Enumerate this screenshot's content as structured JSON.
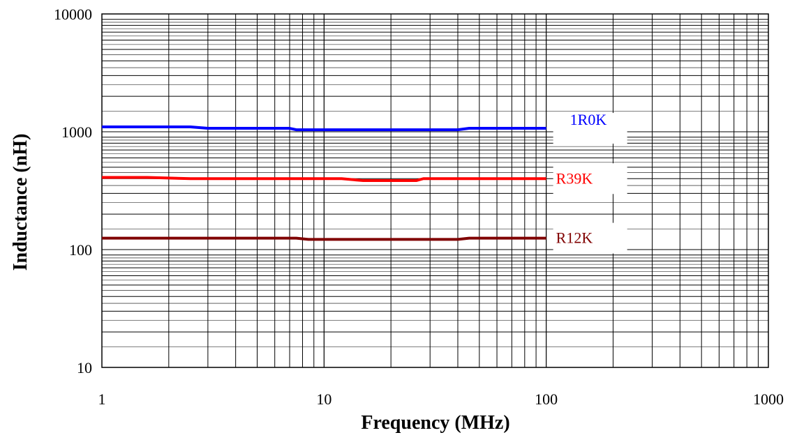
{
  "chart_data": {
    "type": "line",
    "title": "",
    "xlabel": "Frequency (MHz)",
    "ylabel": "Inductance (nH)",
    "xscale": "log",
    "yscale": "log",
    "xlim": [
      1,
      1000
    ],
    "ylim": [
      10,
      10000
    ],
    "xticks": [
      "1",
      "10",
      "100",
      "1000"
    ],
    "yticks": [
      "10",
      "100",
      "1000",
      "10000"
    ],
    "grid": true,
    "series": [
      {
        "name": "1R0K",
        "color": "#0000ff",
        "x": [
          1,
          2.5,
          3,
          7,
          7.5,
          40,
          45,
          100
        ],
        "y": [
          1100,
          1100,
          1070,
          1070,
          1040,
          1040,
          1070,
          1070
        ]
      },
      {
        "name": "R39K",
        "color": "#ff0000",
        "x": [
          1,
          1.6,
          2.5,
          12,
          15,
          26,
          28,
          100
        ],
        "y": [
          410,
          410,
          400,
          400,
          385,
          385,
          400,
          400
        ]
      },
      {
        "name": "R12K",
        "color": "#800000",
        "x": [
          1,
          7.5,
          8.5,
          40,
          45,
          100
        ],
        "y": [
          125,
          125,
          122,
          122,
          125,
          125
        ]
      }
    ]
  }
}
